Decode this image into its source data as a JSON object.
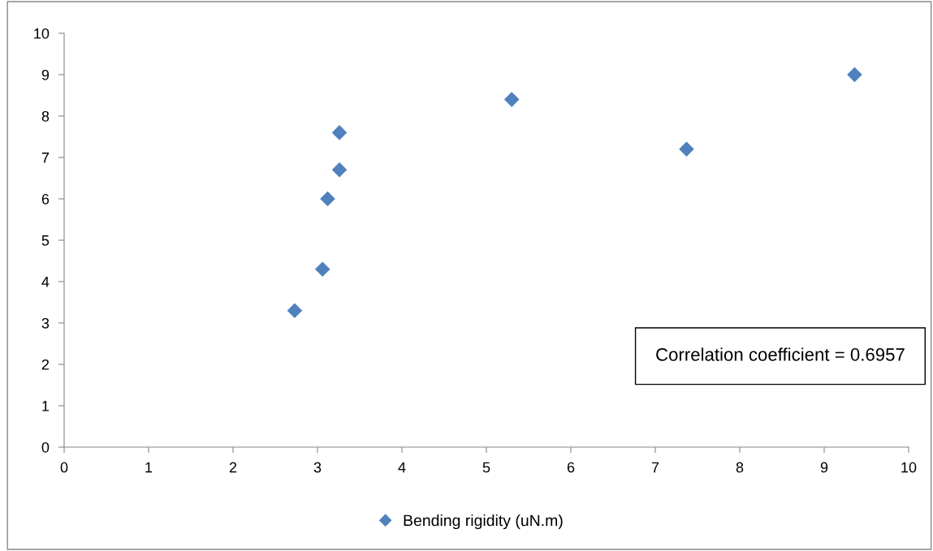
{
  "chart_data": {
    "type": "scatter",
    "series": [
      {
        "name": "Bending rigidity (uN.m)",
        "color": "#4f81bd",
        "x": [
          2.73,
          3.06,
          3.12,
          3.26,
          3.26,
          5.3,
          7.37,
          9.36
        ],
        "values": [
          3.3,
          4.3,
          6.0,
          6.7,
          7.6,
          8.4,
          7.2,
          9.0
        ]
      }
    ],
    "xlim": [
      0,
      10
    ],
    "xticks": [
      0,
      1,
      2,
      3,
      4,
      5,
      6,
      7,
      8,
      9,
      10
    ],
    "ylim": [
      0,
      10
    ],
    "yticks": [
      0,
      1,
      2,
      3,
      4,
      5,
      6,
      7,
      8,
      9,
      10
    ],
    "marker": "diamond",
    "grid": false,
    "legend": "bottom",
    "annotations": [
      "Correlation coefficient = 0.6957"
    ]
  }
}
